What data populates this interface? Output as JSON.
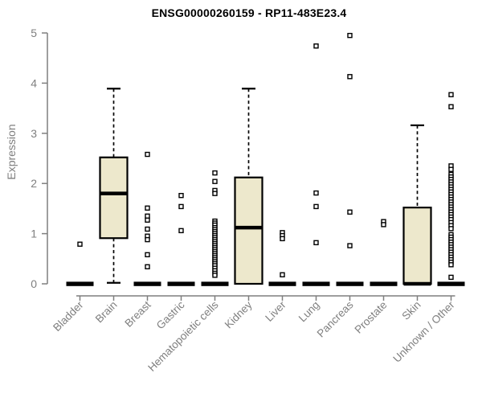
{
  "header": {
    "title": "ENSG00000260159 - RP11-483E23.4"
  },
  "chart_data": {
    "type": "boxplot",
    "title": "ENSG00000260159 - RP11-483E23.4",
    "xlabel": "",
    "ylabel": "Expression",
    "ylim": [
      0,
      5
    ],
    "yticks": [
      0,
      1,
      2,
      3,
      4,
      5
    ],
    "grid": false,
    "legend": "none",
    "categories": [
      "Bladder",
      "Brain",
      "Breast",
      "Gastric",
      "Hematopoietic cells",
      "Kidney",
      "Liver",
      "Lung",
      "Pancreas",
      "Prostate",
      "Skin",
      "Unknown / Other"
    ],
    "boxes": [
      {
        "category": "Bladder",
        "q1": 0,
        "median": 0,
        "q3": 0,
        "whisker_low": 0,
        "whisker_high": 0,
        "outliers": [
          0.79
        ]
      },
      {
        "category": "Brain",
        "q1": 0.91,
        "median": 1.8,
        "q3": 2.52,
        "whisker_low": 0.02,
        "whisker_high": 3.89,
        "outliers": []
      },
      {
        "category": "Breast",
        "q1": 0,
        "median": 0,
        "q3": 0,
        "whisker_low": 0,
        "whisker_high": 0,
        "outliers": [
          2.58,
          1.51,
          1.35,
          1.27,
          1.09,
          0.95,
          0.88,
          0.58,
          0.34
        ]
      },
      {
        "category": "Gastric",
        "q1": 0,
        "median": 0,
        "q3": 0,
        "whisker_low": 0,
        "whisker_high": 0,
        "outliers": [
          1.76,
          1.54,
          1.06
        ]
      },
      {
        "category": "Hematopoietic cells",
        "q1": 0,
        "median": 0,
        "q3": 0,
        "whisker_low": 0,
        "whisker_high": 0,
        "outliers": [
          2.21,
          2.04,
          1.86,
          1.8,
          1.25,
          1.21,
          1.17,
          1.12,
          1.08,
          1.04,
          1.0,
          0.96,
          0.92,
          0.88,
          0.84,
          0.8,
          0.76,
          0.72,
          0.68,
          0.64,
          0.6,
          0.56,
          0.52,
          0.48,
          0.44,
          0.4,
          0.36,
          0.31,
          0.26,
          0.21,
          0.17
        ]
      },
      {
        "category": "Kidney",
        "q1": 0,
        "median": 1.12,
        "q3": 2.12,
        "whisker_low": 0,
        "whisker_high": 3.89,
        "outliers": []
      },
      {
        "category": "Liver",
        "q1": 0,
        "median": 0,
        "q3": 0,
        "whisker_low": 0,
        "whisker_high": 0,
        "outliers": [
          1.02,
          0.96,
          0.9,
          0.18
        ]
      },
      {
        "category": "Lung",
        "q1": 0,
        "median": 0,
        "q3": 0,
        "whisker_low": 0,
        "whisker_high": 0,
        "outliers": [
          4.74,
          1.81,
          1.54,
          0.82
        ]
      },
      {
        "category": "Pancreas",
        "q1": 0,
        "median": 0,
        "q3": 0,
        "whisker_low": 0,
        "whisker_high": 0,
        "outliers": [
          4.95,
          4.13,
          1.43,
          0.76
        ]
      },
      {
        "category": "Prostate",
        "q1": 0,
        "median": 0,
        "q3": 0,
        "whisker_low": 0,
        "whisker_high": 0,
        "outliers": [
          1.24,
          1.18
        ]
      },
      {
        "category": "Skin",
        "q1": 0,
        "median": 0,
        "q3": 1.52,
        "whisker_low": 0,
        "whisker_high": 3.16,
        "outliers": []
      },
      {
        "category": "Unknown / Other",
        "q1": 0,
        "median": 0,
        "q3": 0,
        "whisker_low": 0,
        "whisker_high": 0,
        "outliers": [
          3.77,
          3.53,
          2.35,
          2.28,
          2.18,
          2.13,
          2.08,
          2.03,
          1.98,
          1.93,
          1.88,
          1.83,
          1.78,
          1.73,
          1.68,
          1.63,
          1.58,
          1.53,
          1.48,
          1.43,
          1.38,
          1.33,
          1.28,
          1.22,
          1.16,
          1.1,
          0.98,
          0.93,
          0.88,
          0.83,
          0.78,
          0.73,
          0.68,
          0.63,
          0.58,
          0.53,
          0.48,
          0.43,
          0.38,
          0.13
        ]
      }
    ],
    "colors": {
      "box_fill": "#EDE8CC",
      "box_border": "#000000",
      "median": "#000000",
      "whisker": "#000000",
      "outlier_border": "#000000",
      "outlier_fill": "#FFFFFF",
      "axis": "#7F7F7F",
      "tick_label": "#7F7F7F",
      "title": "#000000",
      "background": "#FFFFFF"
    }
  }
}
